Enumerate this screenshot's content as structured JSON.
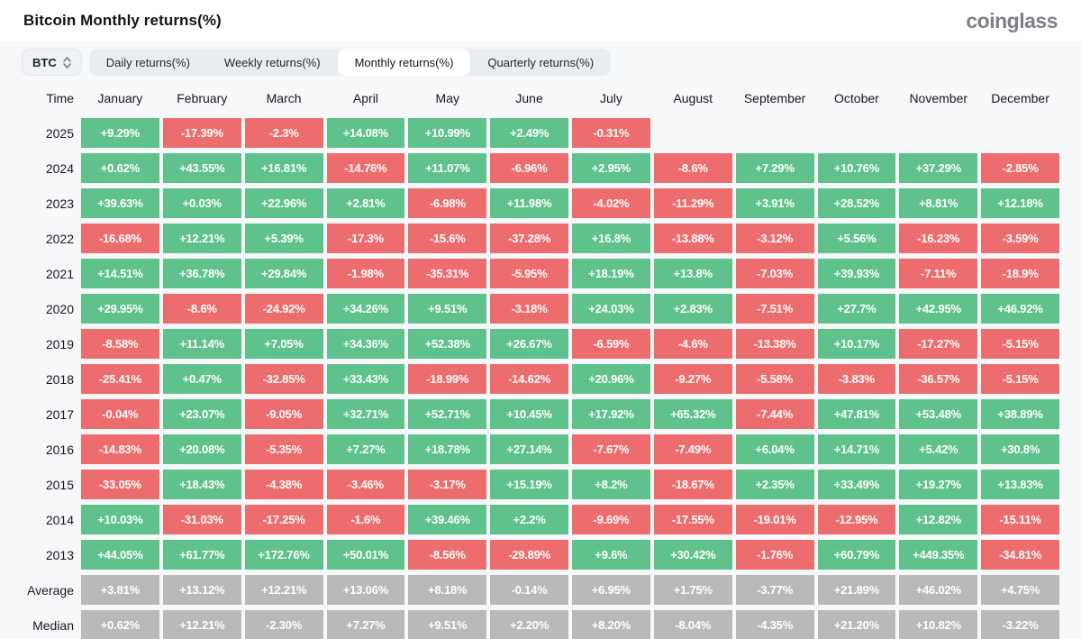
{
  "page": {
    "title": "Bitcoin Monthly returns(%)",
    "brand": "coinglass"
  },
  "controls": {
    "coin_select": {
      "value": "BTC"
    },
    "tabs": [
      {
        "label": "Daily returns(%)",
        "active": false
      },
      {
        "label": "Weekly returns(%)",
        "active": false
      },
      {
        "label": "Monthly returns(%)",
        "active": true
      },
      {
        "label": "Quarterly returns(%)",
        "active": false
      }
    ]
  },
  "colors": {
    "positive": "#5fc28d",
    "negative": "#ed6d6e",
    "neutral": "#b9b9ba",
    "page_background": "#f7f8f9"
  },
  "chart_data": {
    "type": "heatmap",
    "title": "Bitcoin Monthly returns(%)",
    "time_header": "Time",
    "columns": [
      "January",
      "February",
      "March",
      "April",
      "May",
      "June",
      "July",
      "August",
      "September",
      "October",
      "November",
      "December"
    ],
    "legend": "green = positive monthly return, red = negative monthly return, gray = summary rows",
    "rows": [
      {
        "label": "2025",
        "values": [
          "+9.29%",
          "-17.39%",
          "-2.3%",
          "+14.08%",
          "+10.99%",
          "+2.49%",
          "-0.31%",
          null,
          null,
          null,
          null,
          null
        ]
      },
      {
        "label": "2024",
        "values": [
          "+0.62%",
          "+43.55%",
          "+16.81%",
          "-14.76%",
          "+11.07%",
          "-6.96%",
          "+2.95%",
          "-8.6%",
          "+7.29%",
          "+10.76%",
          "+37.29%",
          "-2.85%"
        ]
      },
      {
        "label": "2023",
        "values": [
          "+39.63%",
          "+0.03%",
          "+22.96%",
          "+2.81%",
          "-6.98%",
          "+11.98%",
          "-4.02%",
          "-11.29%",
          "+3.91%",
          "+28.52%",
          "+8.81%",
          "+12.18%"
        ]
      },
      {
        "label": "2022",
        "values": [
          "-16.68%",
          "+12.21%",
          "+5.39%",
          "-17.3%",
          "-15.6%",
          "-37.28%",
          "+16.8%",
          "-13.88%",
          "-3.12%",
          "+5.56%",
          "-16.23%",
          "-3.59%"
        ]
      },
      {
        "label": "2021",
        "values": [
          "+14.51%",
          "+36.78%",
          "+29.84%",
          "-1.98%",
          "-35.31%",
          "-5.95%",
          "+18.19%",
          "+13.8%",
          "-7.03%",
          "+39.93%",
          "-7.11%",
          "-18.9%"
        ]
      },
      {
        "label": "2020",
        "values": [
          "+29.95%",
          "-8.6%",
          "-24.92%",
          "+34.26%",
          "+9.51%",
          "-3.18%",
          "+24.03%",
          "+2.83%",
          "-7.51%",
          "+27.7%",
          "+42.95%",
          "+46.92%"
        ]
      },
      {
        "label": "2019",
        "values": [
          "-8.58%",
          "+11.14%",
          "+7.05%",
          "+34.36%",
          "+52.38%",
          "+26.67%",
          "-6.59%",
          "-4.6%",
          "-13.38%",
          "+10.17%",
          "-17.27%",
          "-5.15%"
        ]
      },
      {
        "label": "2018",
        "values": [
          "-25.41%",
          "+0.47%",
          "-32.85%",
          "+33.43%",
          "-18.99%",
          "-14.62%",
          "+20.96%",
          "-9.27%",
          "-5.58%",
          "-3.83%",
          "-36.57%",
          "-5.15%"
        ]
      },
      {
        "label": "2017",
        "values": [
          "-0.04%",
          "+23.07%",
          "-9.05%",
          "+32.71%",
          "+52.71%",
          "+10.45%",
          "+17.92%",
          "+65.32%",
          "-7.44%",
          "+47.81%",
          "+53.48%",
          "+38.89%"
        ]
      },
      {
        "label": "2016",
        "values": [
          "-14.83%",
          "+20.08%",
          "-5.35%",
          "+7.27%",
          "+18.78%",
          "+27.14%",
          "-7.67%",
          "-7.49%",
          "+6.04%",
          "+14.71%",
          "+5.42%",
          "+30.8%"
        ]
      },
      {
        "label": "2015",
        "values": [
          "-33.05%",
          "+18.43%",
          "-4.38%",
          "-3.46%",
          "-3.17%",
          "+15.19%",
          "+8.2%",
          "-18.67%",
          "+2.35%",
          "+33.49%",
          "+19.27%",
          "+13.83%"
        ]
      },
      {
        "label": "2014",
        "values": [
          "+10.03%",
          "-31.03%",
          "-17.25%",
          "-1.6%",
          "+39.46%",
          "+2.2%",
          "-9.69%",
          "-17.55%",
          "-19.01%",
          "-12.95%",
          "+12.82%",
          "-15.11%"
        ]
      },
      {
        "label": "2013",
        "values": [
          "+44.05%",
          "+61.77%",
          "+172.76%",
          "+50.01%",
          "-8.56%",
          "-29.89%",
          "+9.6%",
          "+30.42%",
          "-1.76%",
          "+60.79%",
          "+449.35%",
          "-34.81%"
        ]
      },
      {
        "label": "Average",
        "neutral": true,
        "values": [
          "+3.81%",
          "+13.12%",
          "+12.21%",
          "+13.06%",
          "+8.18%",
          "-0.14%",
          "+6.95%",
          "+1.75%",
          "-3.77%",
          "+21.89%",
          "+46.02%",
          "+4.75%"
        ]
      },
      {
        "label": "Median",
        "neutral": true,
        "values": [
          "+0.62%",
          "+12.21%",
          "-2.30%",
          "+7.27%",
          "+9.51%",
          "+2.20%",
          "+8.20%",
          "-8.04%",
          "-4.35%",
          "+21.20%",
          "+10.82%",
          "-3.22%"
        ]
      }
    ]
  }
}
